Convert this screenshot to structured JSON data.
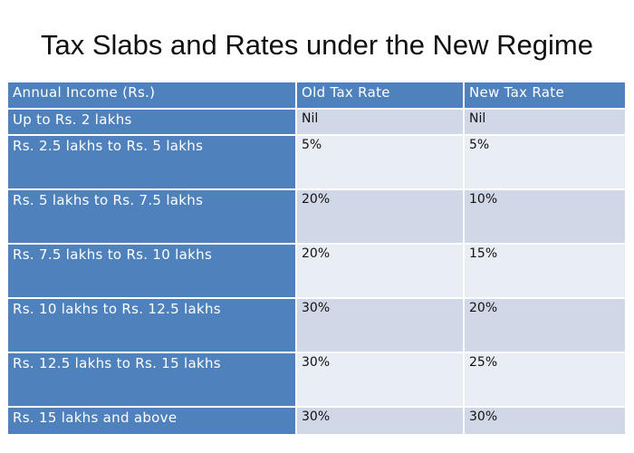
{
  "title": "Tax Slabs and Rates under the New Regime",
  "table": {
    "headers": [
      "Annual Income (Rs.)",
      "Old Tax Rate",
      "New Tax Rate"
    ],
    "rows": [
      {
        "income": "Up to Rs. 2 lakhs",
        "old": "Nil",
        "new": "Nil"
      },
      {
        "income": "Rs. 2.5 lakhs to Rs. 5 lakhs",
        "old": "5%",
        "new": "5%"
      },
      {
        "income": "Rs. 5 lakhs to Rs. 7.5 lakhs",
        "old": "20%",
        "new": "10%"
      },
      {
        "income": "Rs. 7.5 lakhs to Rs. 10 lakhs",
        "old": "20%",
        "new": "15%"
      },
      {
        "income": "Rs. 10 lakhs to Rs. 12.5 lakhs",
        "old": "30%",
        "new": "20%"
      },
      {
        "income": "Rs. 12.5 lakhs to Rs. 15 lakhs",
        "old": "30%",
        "new": "25%"
      },
      {
        "income": "Rs. 15 lakhs and above",
        "old": "30%",
        "new": "30%"
      }
    ]
  },
  "colors": {
    "header_bg": "#4f81bd",
    "row_odd_bg": "#d0d8e8",
    "row_even_bg": "#e9edf4"
  }
}
